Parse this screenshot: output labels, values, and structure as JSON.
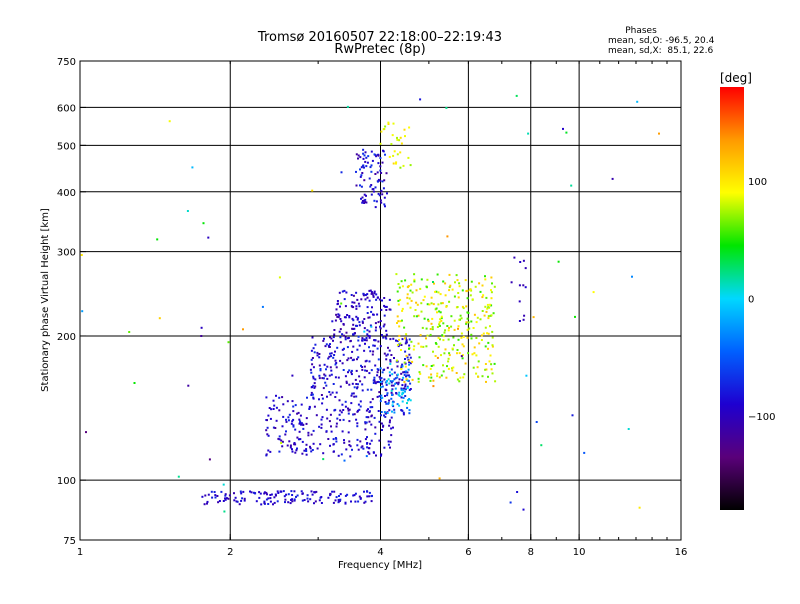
{
  "header": {
    "title": "Tromsø 20160507 22:18:00–22:19:43",
    "subtitle": "RwPretec (8p)",
    "phase_title": "Phases",
    "phase_o": "mean, sd,O: -96.5, 20.4",
    "phase_x": "mean, sd,X:  85.1, 22.6"
  },
  "colorbar": {
    "label": "[deg]",
    "ticks": [
      {
        "label": "100",
        "value": 100
      },
      {
        "label": "0",
        "value": 0
      },
      {
        "label": "−100",
        "value": -100
      }
    ],
    "range": [
      -180,
      180
    ],
    "colors": [
      "#000000",
      "#5a007a",
      "#1e00d0",
      "#0060ff",
      "#00d8ff",
      "#00e600",
      "#ffff00",
      "#ff9a00",
      "#ff0000"
    ]
  },
  "chart_data": {
    "type": "scatter",
    "title": "Tromsø 20160507 22:18:00–22:19:43",
    "subtitle": "RwPretec (8p)",
    "xlabel": "Frequency [MHz]",
    "ylabel": "Stationary phase Virtual Height [km]",
    "xscale": "log",
    "yscale": "log",
    "xlim": [
      1,
      16
    ],
    "ylim": [
      75,
      750
    ],
    "grid": true,
    "x_ticks": [
      {
        "label": "1",
        "value": 1
      },
      {
        "label": "2",
        "value": 2
      },
      {
        "label": "4",
        "value": 4
      },
      {
        "label": "6",
        "value": 6
      },
      {
        "label": "8",
        "value": 8
      },
      {
        "label": "10",
        "value": 10
      },
      {
        "label": "16",
        "value": 16
      }
    ],
    "x_gridlines": [
      2,
      4,
      6,
      8,
      10
    ],
    "y_ticks": [
      {
        "label": "75",
        "value": 75
      },
      {
        "label": "100",
        "value": 100
      },
      {
        "label": "200",
        "value": 200
      },
      {
        "label": "300",
        "value": 300
      },
      {
        "label": "400",
        "value": 400
      },
      {
        "label": "500",
        "value": 500
      },
      {
        "label": "600",
        "value": 600
      },
      {
        "label": "750",
        "value": 750
      }
    ],
    "y_gridlines": [
      100,
      200,
      300,
      400,
      500,
      600
    ],
    "color_variable": "phase [deg]",
    "clusters": [
      {
        "name": "E-layer trace",
        "x": [
          1.75,
          3.85
        ],
        "y": [
          89,
          95
        ],
        "n": 150,
        "phase": [
          -110,
          -70
        ]
      },
      {
        "name": "lower F trace",
        "x": [
          2.35,
          4.25
        ],
        "y": [
          112,
          150
        ],
        "n": 260,
        "phase": [
          -115,
          -70
        ]
      },
      {
        "name": "middle F trace",
        "x": [
          2.9,
          4.6
        ],
        "y": [
          150,
          200
        ],
        "n": 260,
        "phase": [
          -115,
          -65
        ]
      },
      {
        "name": "upper F trace",
        "x": [
          3.2,
          4.2
        ],
        "y": [
          195,
          250
        ],
        "n": 140,
        "phase": [
          -120,
          -75
        ]
      },
      {
        "name": "cusp",
        "x": [
          4.0,
          4.6
        ],
        "y": [
          135,
          175
        ],
        "n": 90,
        "phase": [
          -90,
          10
        ]
      },
      {
        "name": "X-mode trace",
        "x": [
          4.3,
          6.8
        ],
        "y": [
          160,
          270
        ],
        "n": 320,
        "phase": [
          50,
          120
        ]
      },
      {
        "name": "high echo cluster",
        "x": [
          3.55,
          4.15
        ],
        "y": [
          370,
          490
        ],
        "n": 90,
        "phase": [
          -120,
          -60
        ]
      },
      {
        "name": "high X cluster",
        "x": [
          4.0,
          4.6
        ],
        "y": [
          440,
          560
        ],
        "n": 30,
        "phase": [
          70,
          110
        ]
      },
      {
        "name": "high frequency blue",
        "x": [
          7.3,
          7.9
        ],
        "y": [
          210,
          300
        ],
        "n": 12,
        "phase": [
          -110,
          -80
        ]
      },
      {
        "name": "scattered noise",
        "x": [
          1.0,
          14.5
        ],
        "y": [
          85,
          650
        ],
        "n": 70,
        "phase": [
          -140,
          140
        ]
      }
    ]
  }
}
